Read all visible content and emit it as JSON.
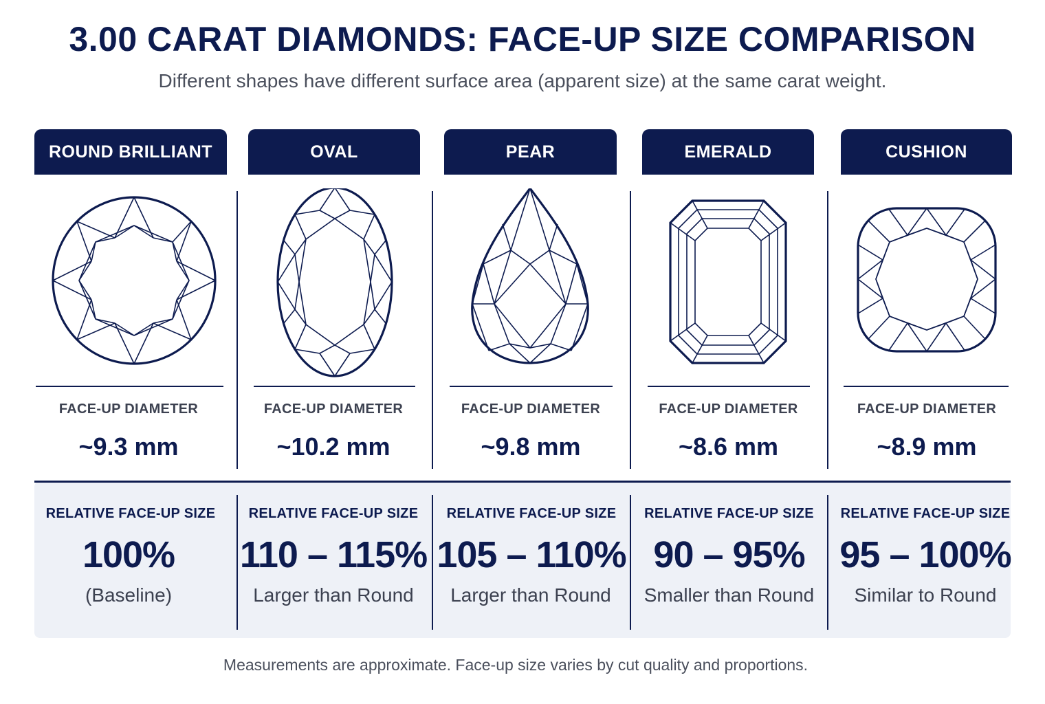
{
  "title": "3.00 CARAT DIAMONDS: FACE-UP SIZE COMPARISON",
  "subtitle": "Different shapes have different surface area (apparent size) at the same carat weight.",
  "colors": {
    "navy": "#0d1b4f",
    "panel": "#eef1f7",
    "muted_text": "#4a4f5c"
  },
  "shapes": [
    {
      "name": "ROUND BRILLIANT",
      "icon": "round-brilliant-icon",
      "diameter_label": "FACE-UP DIAMETER",
      "diameter": "~9.3 mm",
      "relative_label": "RELATIVE FACE-UP SIZE",
      "relative": "100%",
      "note": "(Baseline)"
    },
    {
      "name": "OVAL",
      "icon": "oval-icon",
      "diameter_label": "FACE-UP DIAMETER",
      "diameter": "~10.2 mm",
      "relative_label": "RELATIVE FACE-UP SIZE",
      "relative": "110 – 115%",
      "note": "Larger than Round"
    },
    {
      "name": "PEAR",
      "icon": "pear-icon",
      "diameter_label": "FACE-UP DIAMETER",
      "diameter": "~9.8 mm",
      "relative_label": "RELATIVE FACE-UP SIZE",
      "relative": "105 – 110%",
      "note": "Larger than Round"
    },
    {
      "name": "EMERALD",
      "icon": "emerald-icon",
      "diameter_label": "FACE-UP DIAMETER",
      "diameter": "~8.6 mm",
      "relative_label": "RELATIVE FACE-UP SIZE",
      "relative": "90 – 95%",
      "note": "Smaller than Round"
    },
    {
      "name": "CUSHION",
      "icon": "cushion-icon",
      "diameter_label": "FACE-UP DIAMETER",
      "diameter": "~8.9 mm",
      "relative_label": "RELATIVE FACE-UP SIZE",
      "relative": "95 – 100%",
      "note": "Similar to Round"
    }
  ],
  "footnote": "Measurements are approximate. Face-up size varies by cut quality and proportions."
}
